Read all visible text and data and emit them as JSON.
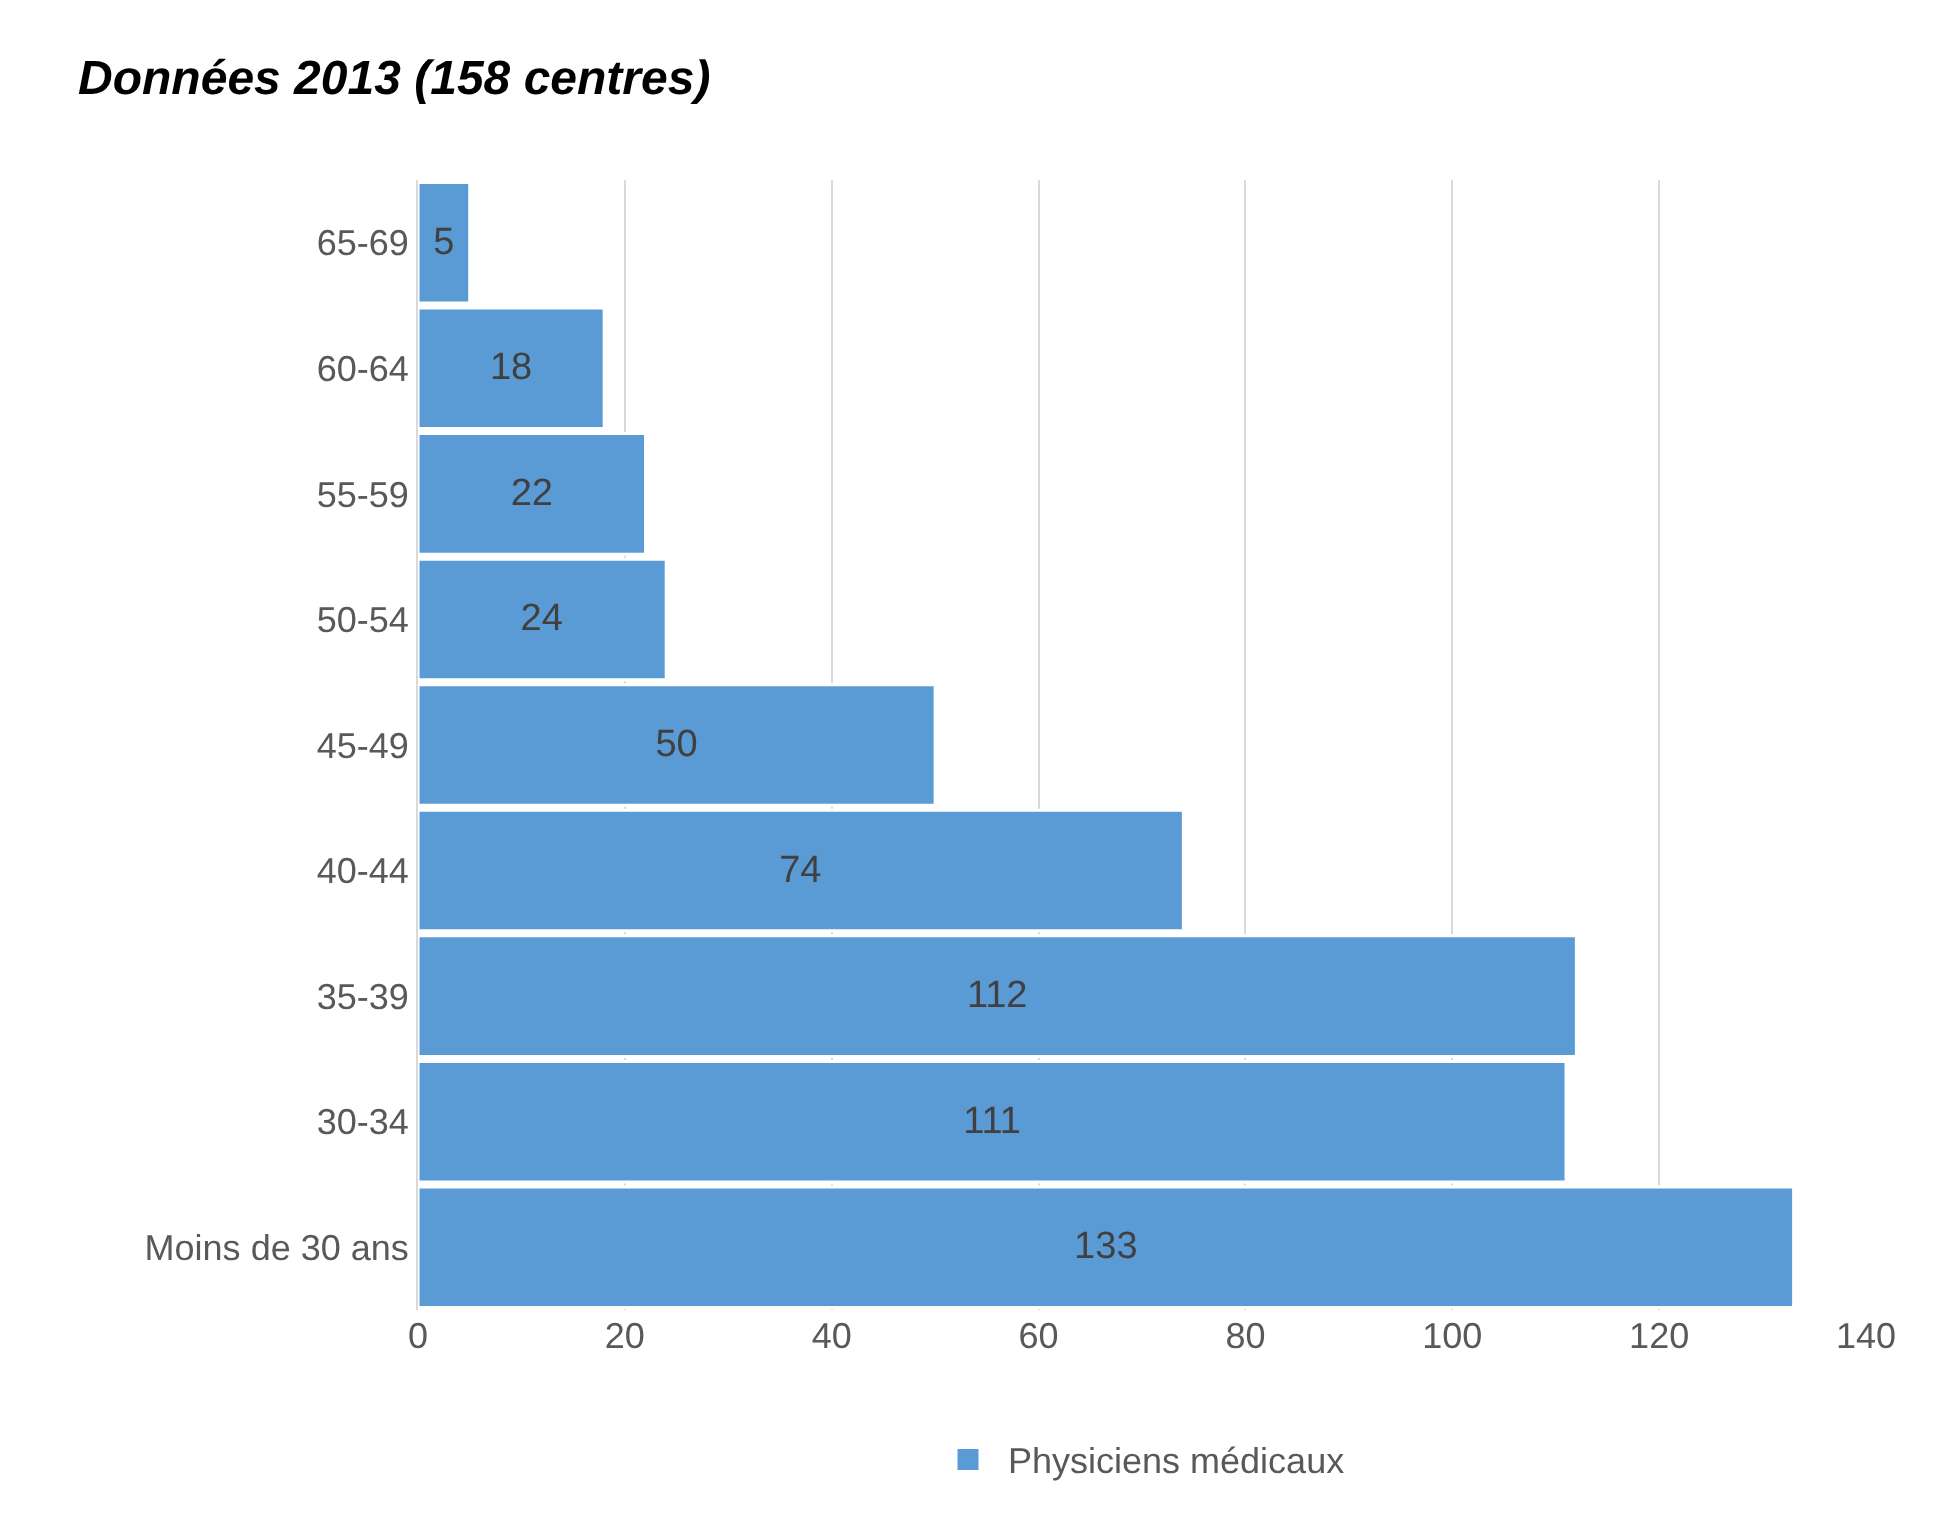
{
  "chart_data": {
    "type": "bar",
    "title": "Données 2013 (158 centres)",
    "orientation": "horizontal",
    "categories": [
      "65-69",
      "60-64",
      "55-59",
      "50-54",
      "45-49",
      "40-44",
      "35-39",
      "30-34",
      "Moins de 30 ans"
    ],
    "series": [
      {
        "name": "Physiciens médicaux",
        "color": "#5b9bd5",
        "values": [
          5,
          18,
          22,
          24,
          50,
          74,
          112,
          111,
          133
        ]
      }
    ],
    "xlim": [
      0,
      140
    ],
    "xticks": [
      0,
      20,
      40,
      60,
      80,
      100,
      120,
      140
    ],
    "grid": "x",
    "legend": "bottom",
    "data_labels": true
  }
}
